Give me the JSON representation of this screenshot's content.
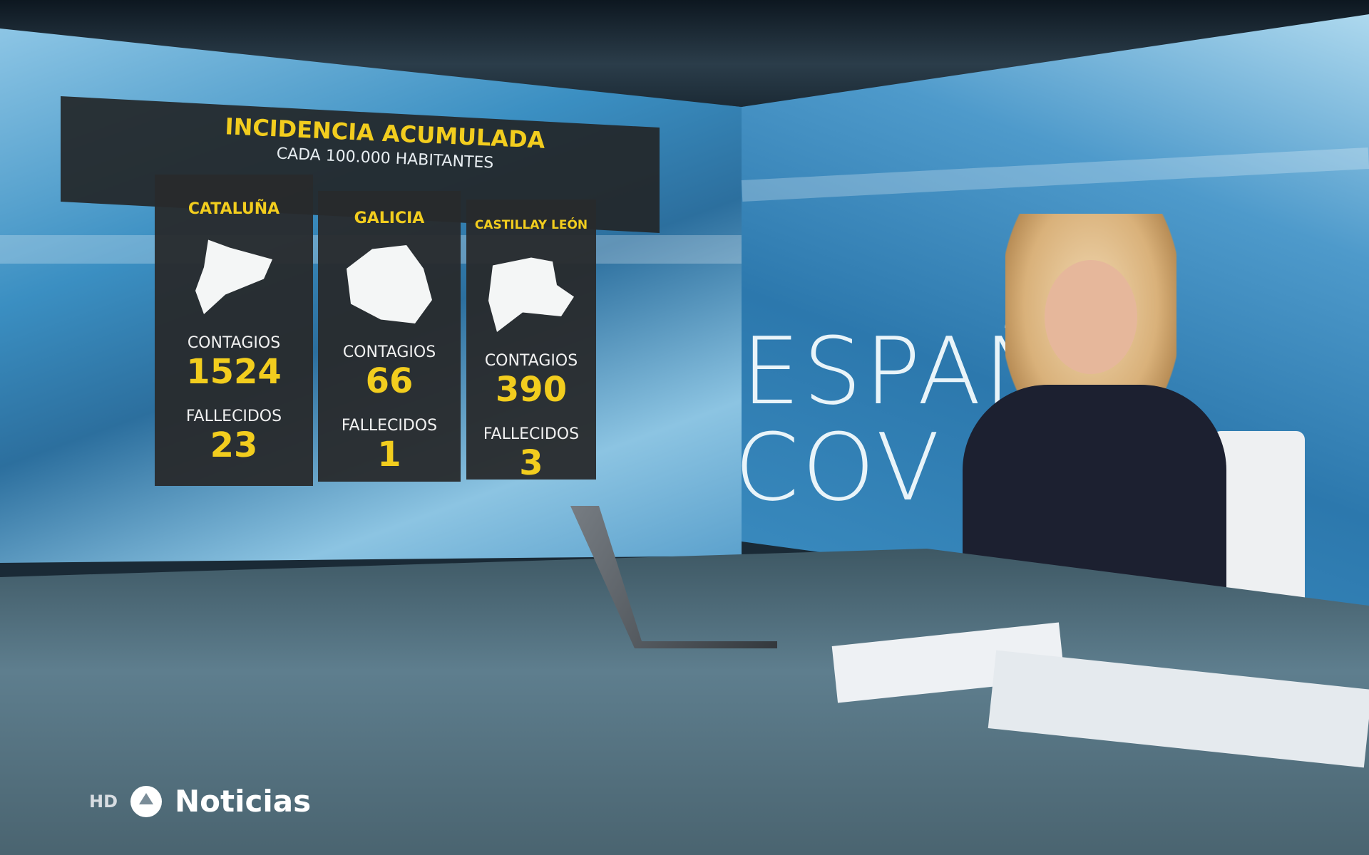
{
  "graphic": {
    "title": "INCIDENCIA ACUMULADA",
    "subtitle": "CADA 100.000 HABITANTES",
    "regions": [
      {
        "name": "CATALUÑA",
        "contagios_label": "CONTAGIOS",
        "contagios": "1524",
        "fallecidos_label": "FALLECIDOS",
        "fallecidos": "23"
      },
      {
        "name": "GALICIA",
        "contagios_label": "CONTAGIOS",
        "contagios": "66",
        "fallecidos_label": "FALLECIDOS",
        "fallecidos": "1"
      },
      {
        "name": "CASTILLAY LEÓN",
        "contagios_label": "CONTAGIOS",
        "contagios": "390",
        "fallecidos_label": "FALLECIDOS",
        "fallecidos": "3"
      }
    ],
    "accent": "#f2cd1e"
  },
  "backdrop": {
    "line1": "ESPAÑ",
    "line2": "COV"
  },
  "logo": {
    "hd": "HD",
    "brand": "Noticias"
  }
}
